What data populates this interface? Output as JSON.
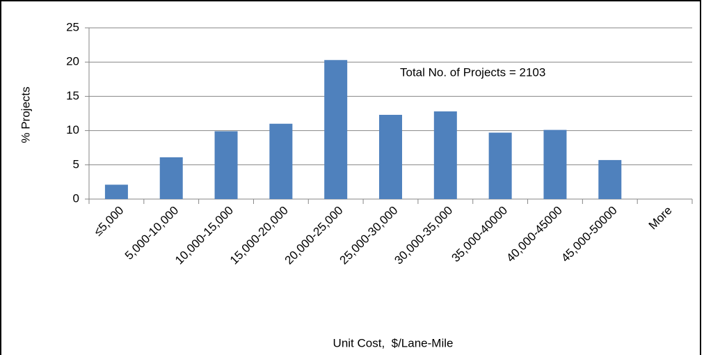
{
  "chart_data": {
    "type": "bar",
    "categories": [
      "≤5,000",
      "5,000-10,000",
      "10,000-15,000",
      "15,000-20,000",
      "20,000-25,000",
      "25,000-30,000",
      "30,000-35,000",
      "35,000-40000",
      "40,000-45000",
      "45,000-50000",
      "More"
    ],
    "values": [
      2.1,
      6.1,
      9.9,
      11.0,
      20.3,
      12.3,
      12.8,
      9.7,
      10.1,
      5.7,
      0
    ],
    "color": "#4f81bd",
    "ylim": [
      0,
      25
    ],
    "yticks": [
      0,
      5,
      10,
      15,
      20,
      25
    ],
    "grid": true,
    "y_label": "% Projects",
    "x_label": "Unit Cost,  $/Lane-Mile",
    "annotation": "Total No. of Projects = 2103"
  }
}
